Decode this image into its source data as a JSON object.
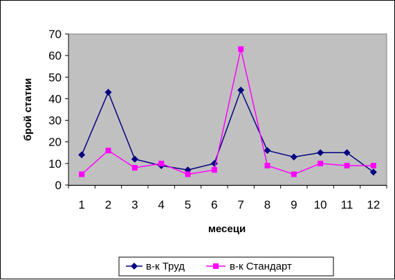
{
  "chart_data": {
    "type": "line",
    "title": "",
    "xlabel": "месеци",
    "ylabel": "брой статии",
    "categories": [
      "1",
      "2",
      "3",
      "4",
      "5",
      "6",
      "7",
      "8",
      "9",
      "10",
      "11",
      "12"
    ],
    "ylim": [
      0,
      70
    ],
    "yticks": [
      0,
      10,
      20,
      30,
      40,
      50,
      60,
      70
    ],
    "grid": false,
    "plot_background": "#c0c0c0",
    "legend_position": "bottom",
    "series": [
      {
        "name": "в-к Труд",
        "color": "#000080",
        "marker": "diamond",
        "values": [
          14,
          43,
          12,
          9,
          7,
          10,
          44,
          16,
          13,
          15,
          15,
          6
        ]
      },
      {
        "name": "в-к Стандарт",
        "color": "#ff00ff",
        "marker": "square",
        "values": [
          5,
          16,
          8,
          10,
          5,
          7,
          63,
          9,
          5,
          10,
          9,
          9
        ]
      }
    ]
  }
}
